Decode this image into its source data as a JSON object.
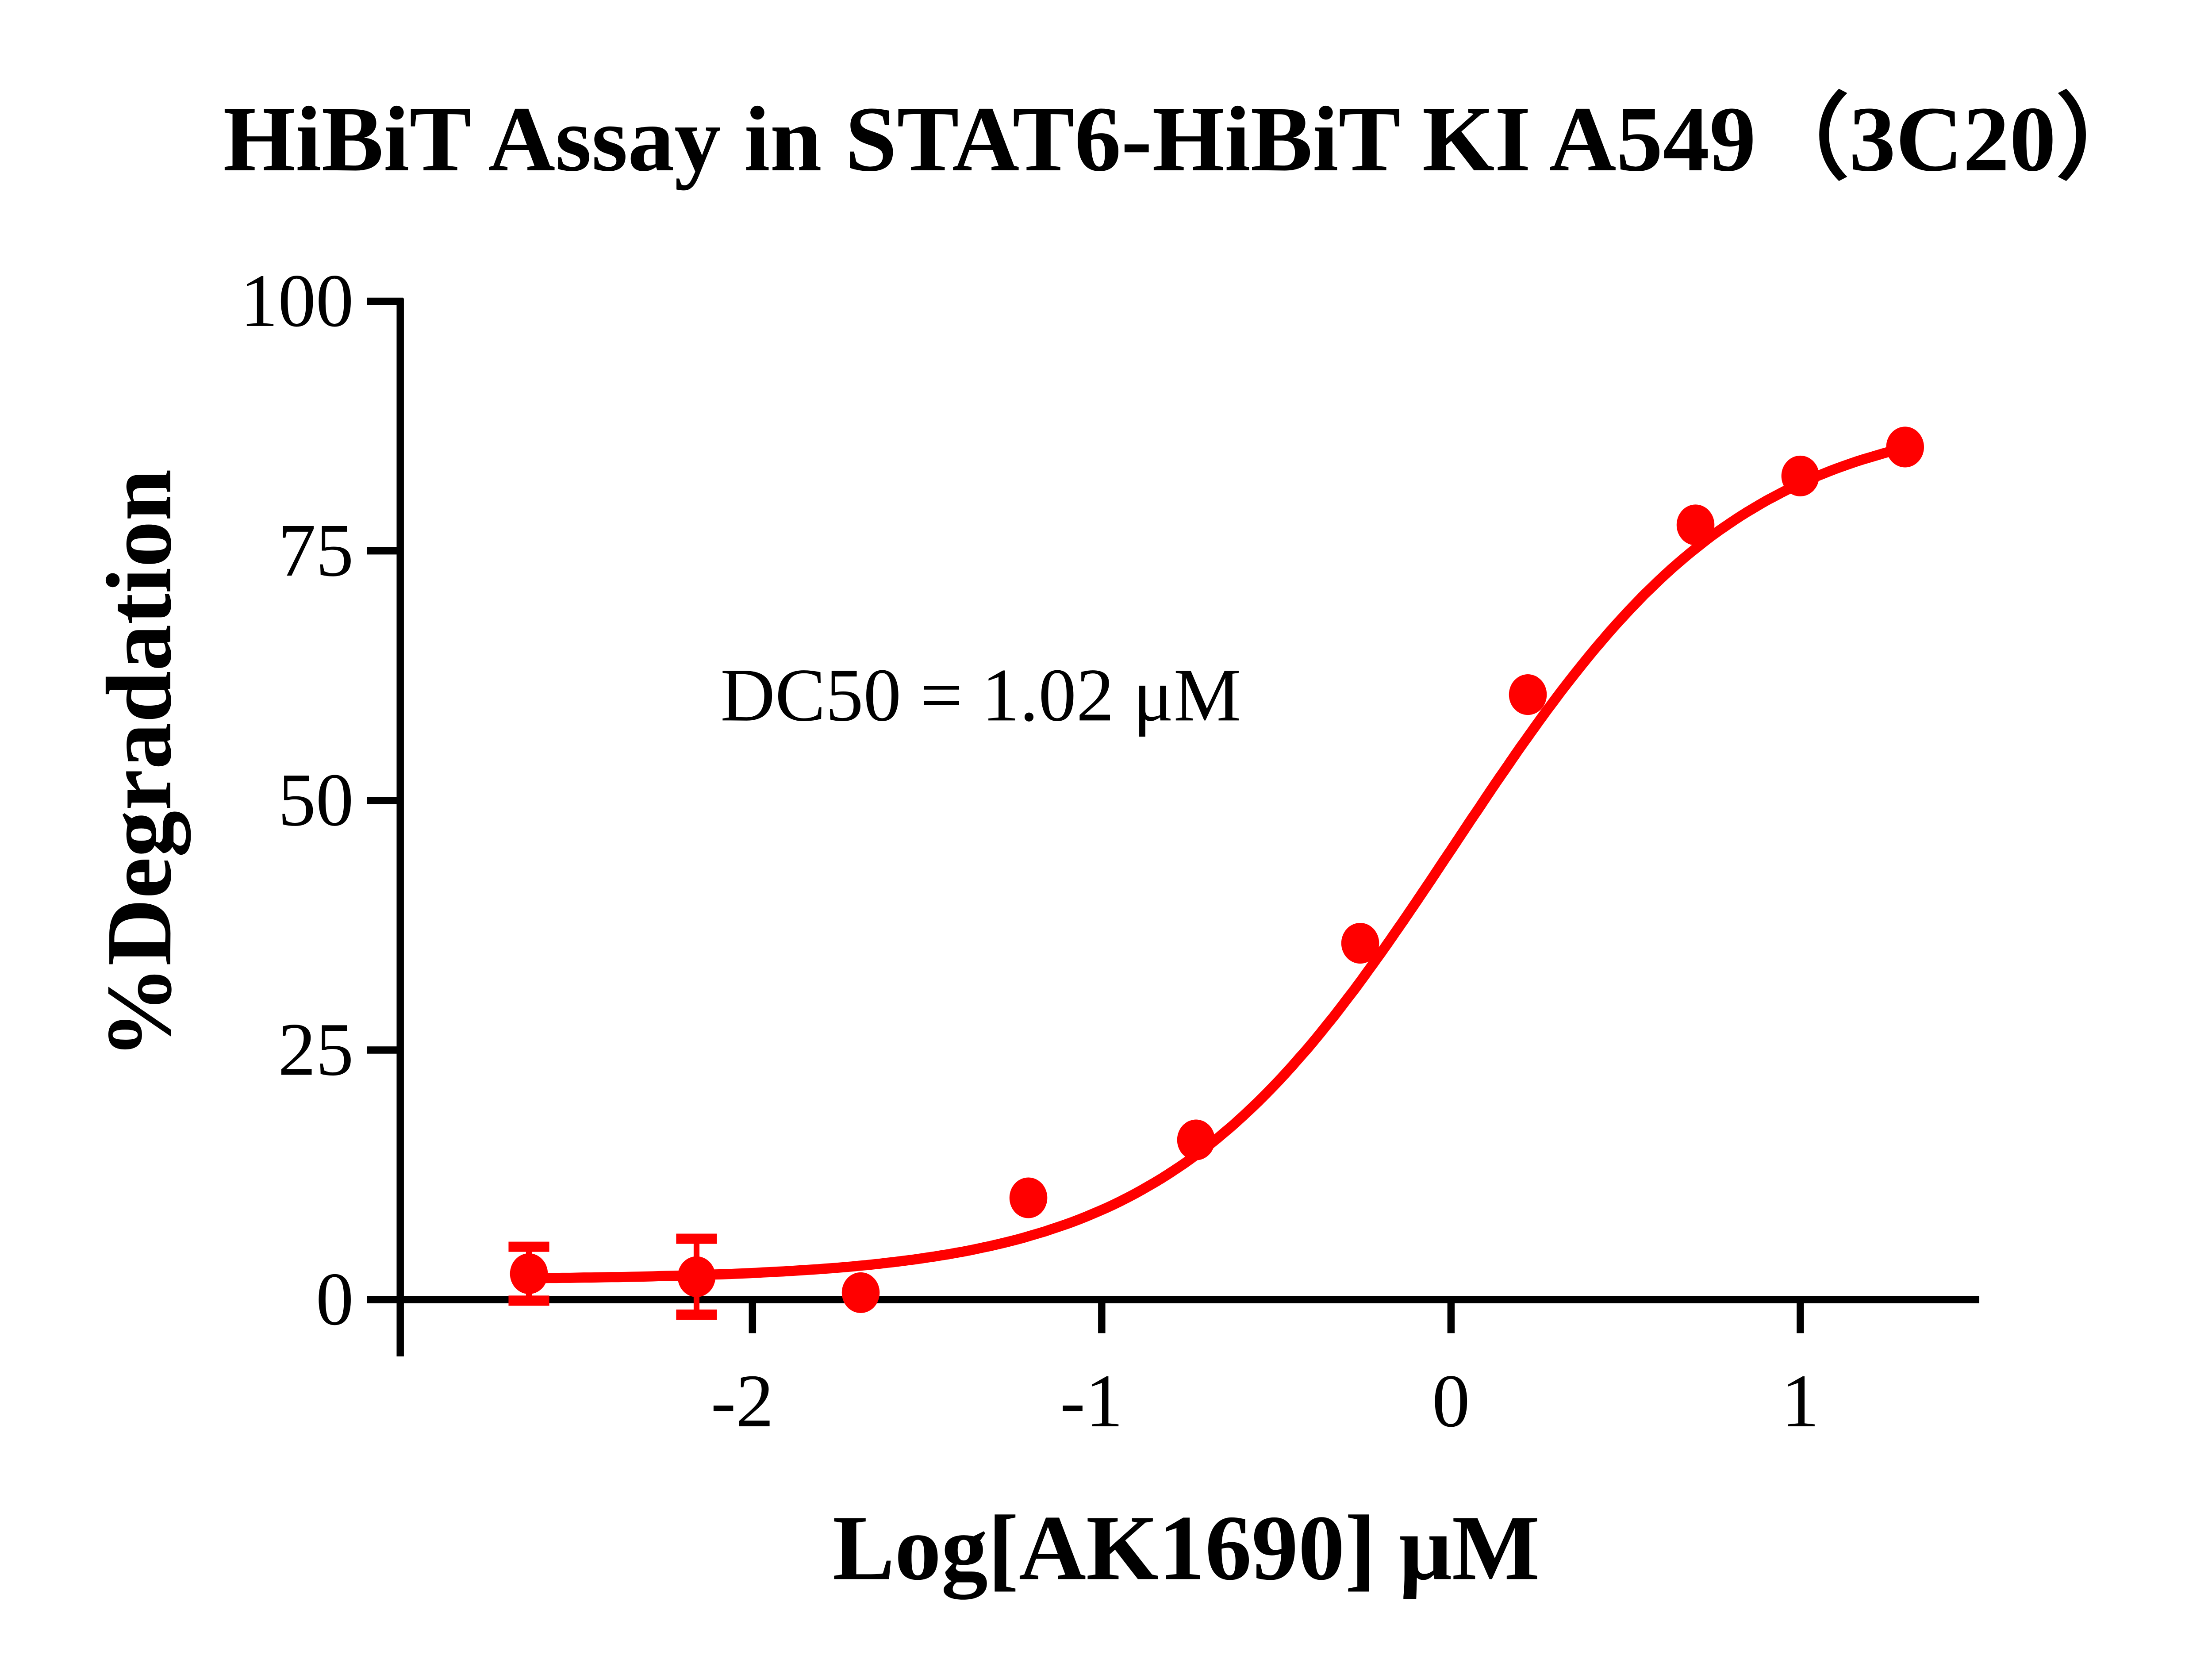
{
  "chart_data": {
    "type": "scatter",
    "title": "HiBiT Assay in STAT6-HiBiT KI A549（3C20）",
    "xlabel": "Log[AK1690] μM",
    "ylabel": "%Degradation",
    "xlim": [
      -2.7,
      1.5
    ],
    "ylim": [
      0,
      100
    ],
    "x_ticks": [
      "-2",
      "-1",
      "0",
      "1"
    ],
    "y_ticks": [
      "0",
      "25",
      "50",
      "75",
      "100"
    ],
    "grid": false,
    "legend": "none",
    "annotation": "DC50 = 1.02 μM",
    "color": "#ff0000",
    "series": [
      {
        "x": [
          -2.64,
          -2.16,
          -1.69,
          -1.21,
          -0.73,
          -0.26,
          0.22,
          0.7,
          1.0,
          1.3
        ],
        "y": [
          2.6,
          2.3,
          0.7,
          10.2,
          16.0,
          35.7,
          60.6,
          77.6,
          82.5,
          85.4
        ],
        "error": [
          2.7,
          3.8,
          0,
          0,
          0,
          0,
          0,
          0,
          0,
          0
        ]
      }
    ],
    "fit": {
      "model": "4PL",
      "bottom": 2,
      "top": 89,
      "logDC50": 0.0086,
      "hill": 1.05
    }
  }
}
